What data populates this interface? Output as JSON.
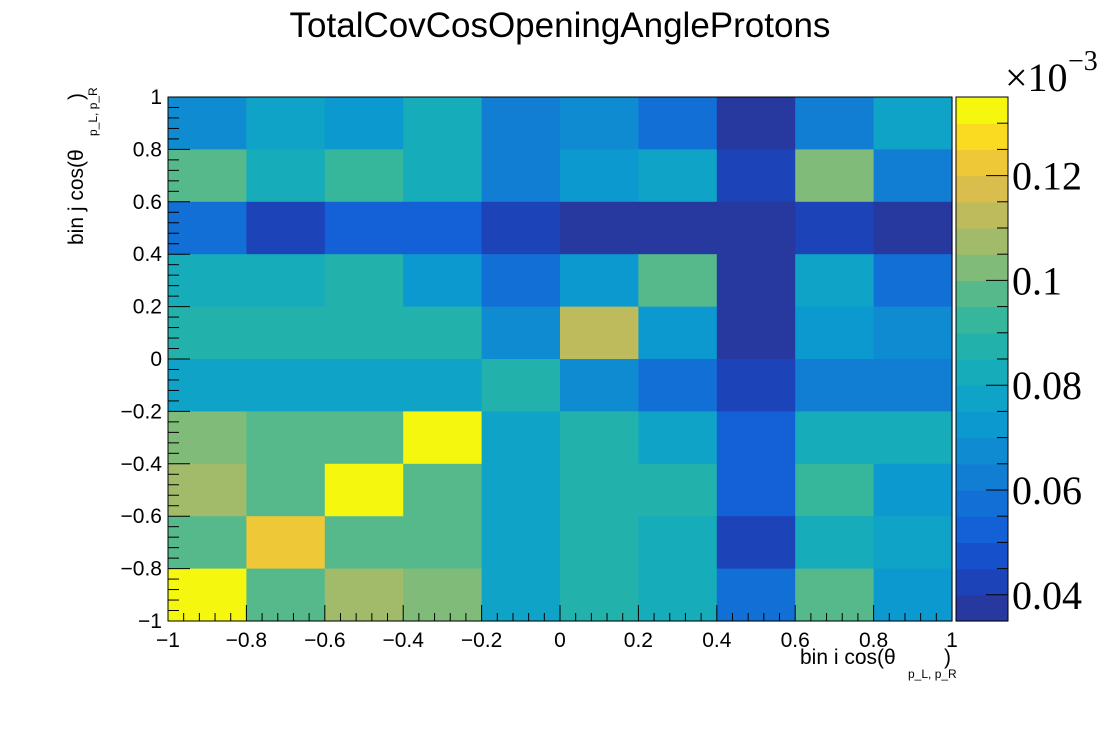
{
  "chart_data": {
    "type": "heatmap",
    "title": "TotalCovCosOpeningAngleProtons",
    "xlabel_main": "bin i cos(θ",
    "xlabel_sub": "p_L, p_R",
    "ylabel_main": "bin j cos(θ",
    "ylabel_sub": "p_L, p_R",
    "xlim": [
      -1,
      1
    ],
    "ylim": [
      -1,
      1
    ],
    "x_ticks": [
      "−1",
      "−0.8",
      "−0.6",
      "−0.4",
      "−0.2",
      "0",
      "0.2",
      "0.4",
      "0.6",
      "0.8",
      "1"
    ],
    "y_ticks": [
      "−1",
      "−0.8",
      "−0.6",
      "−0.4",
      "−0.2",
      "0",
      "0.2",
      "0.4",
      "0.6",
      "0.8",
      "1"
    ],
    "x_bin_edges": [
      -1,
      -0.8,
      -0.6,
      -0.4,
      -0.2,
      0,
      0.2,
      0.4,
      0.6,
      0.8,
      1
    ],
    "y_bin_edges": [
      -1,
      -0.8,
      -0.6,
      -0.4,
      -0.2,
      0,
      0.2,
      0.4,
      0.6,
      0.8,
      1
    ],
    "z_scale_label": "×10",
    "z_scale_exp": "−3",
    "zlim": [
      0.035,
      0.135
    ],
    "z_ticks": [
      {
        "value": 0.04,
        "label": "0.04"
      },
      {
        "value": 0.06,
        "label": "0.06"
      },
      {
        "value": 0.08,
        "label": "0.08"
      },
      {
        "value": 0.1,
        "label": "0.1"
      },
      {
        "value": 0.12,
        "label": "0.12"
      }
    ],
    "palette_levels": 20,
    "palette_stops": [
      [
        0.0,
        "#27399e"
      ],
      [
        0.08,
        "#1748c4"
      ],
      [
        0.17,
        "#1364d9"
      ],
      [
        0.28,
        "#1183d2"
      ],
      [
        0.39,
        "#0a9ecf"
      ],
      [
        0.5,
        "#1ab0b3"
      ],
      [
        0.6,
        "#3db895"
      ],
      [
        0.7,
        "#8dbb75"
      ],
      [
        0.78,
        "#b9bb60"
      ],
      [
        0.86,
        "#e3bf48"
      ],
      [
        0.93,
        "#fbd128"
      ],
      [
        1.0,
        "#f5f80e"
      ]
    ],
    "z_values_rows_top_to_bottom": [
      [
        0.068,
        0.077,
        0.07,
        0.082,
        0.062,
        0.066,
        0.058,
        0.038,
        0.062,
        0.077
      ],
      [
        0.096,
        0.082,
        0.092,
        0.082,
        0.062,
        0.071,
        0.077,
        0.044,
        0.102,
        0.062
      ],
      [
        0.057,
        0.043,
        0.05,
        0.05,
        0.044,
        0.038,
        0.038,
        0.038,
        0.044,
        0.037
      ],
      [
        0.082,
        0.082,
        0.088,
        0.075,
        0.057,
        0.071,
        0.096,
        0.038,
        0.077,
        0.057
      ],
      [
        0.088,
        0.088,
        0.088,
        0.088,
        0.066,
        0.111,
        0.071,
        0.038,
        0.071,
        0.066
      ],
      [
        0.077,
        0.077,
        0.077,
        0.077,
        0.088,
        0.066,
        0.057,
        0.043,
        0.062,
        0.062
      ],
      [
        0.1,
        0.096,
        0.096,
        0.133,
        0.077,
        0.088,
        0.077,
        0.05,
        0.082,
        0.082
      ],
      [
        0.106,
        0.096,
        0.133,
        0.096,
        0.077,
        0.088,
        0.088,
        0.05,
        0.092,
        0.071
      ],
      [
        0.096,
        0.121,
        0.096,
        0.096,
        0.077,
        0.088,
        0.082,
        0.043,
        0.082,
        0.077
      ],
      [
        0.133,
        0.096,
        0.106,
        0.1,
        0.077,
        0.088,
        0.082,
        0.057,
        0.096,
        0.071
      ]
    ]
  }
}
